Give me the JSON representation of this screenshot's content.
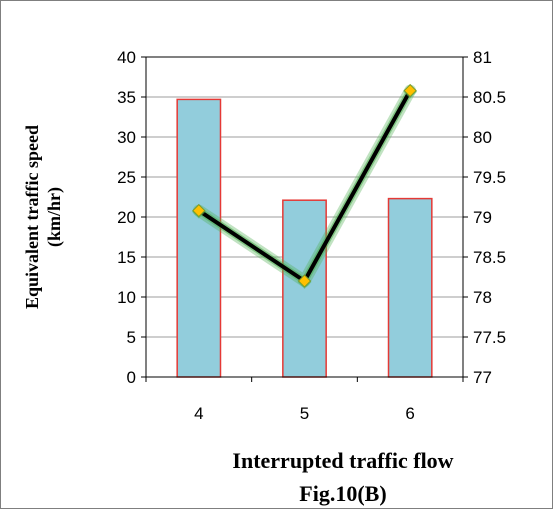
{
  "chart_data": {
    "type": "bar+line",
    "categories": [
      "4",
      "5",
      "6"
    ],
    "series": [
      {
        "type": "bar",
        "axis": "left",
        "values": [
          34.7,
          22.1,
          22.3
        ],
        "fill": "#92CDDC",
        "stroke": "#E53935"
      },
      {
        "type": "line",
        "axis": "right",
        "values": [
          79.08,
          78.2,
          80.58
        ],
        "line_color": "#000000",
        "glow_color": "#4CAF50",
        "marker_color": "#FFC000"
      }
    ],
    "ylabel_left": "Equivalent traffic speed (km/hr)",
    "ylabel_left_lines": [
      "Equivalent traffic speed",
      "(km/hr)"
    ],
    "xlabel": "Interrupted traffic flow",
    "caption": "Fig.10(B)",
    "ylim_left": [
      0,
      40
    ],
    "ylim_right": [
      77,
      81
    ],
    "yticks_left": [
      "0",
      "5",
      "10",
      "15",
      "20",
      "25",
      "30",
      "35",
      "40"
    ],
    "yticks_right": [
      "77",
      "77.5",
      "78",
      "78.5",
      "79",
      "79.5",
      "80",
      "80.5",
      "81"
    ],
    "grid": "horizontal",
    "legend": "none"
  }
}
